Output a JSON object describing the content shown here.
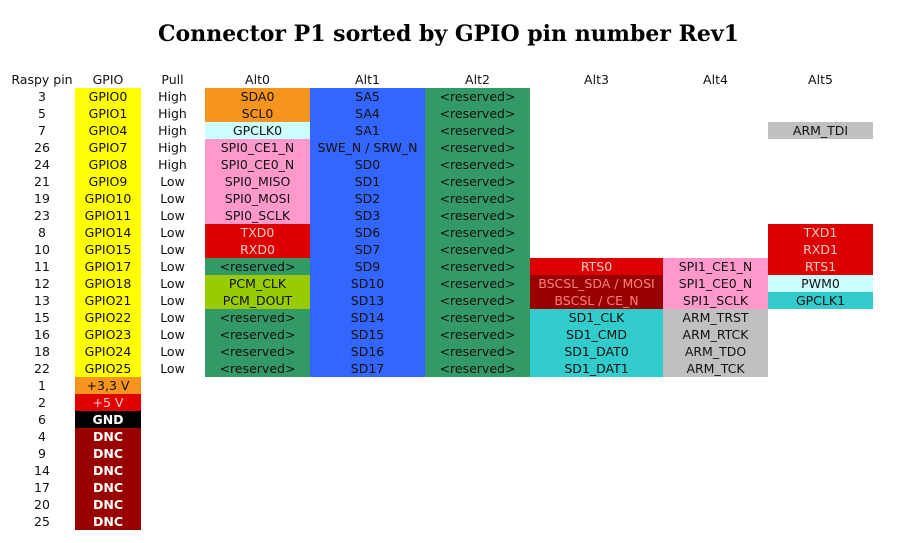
{
  "title": "Connector P1 sorted by GPIO pin number Rev1",
  "headers": [
    "Raspy pin",
    "GPIO",
    "Pull",
    "Alt0",
    "Alt1",
    "Alt2",
    "Alt3",
    "Alt4",
    "Alt5"
  ],
  "colors": {
    "gpio": "#ffff00",
    "power33": "#f7941d",
    "power5": "#e00000",
    "gnd": "#000000",
    "dnc": "#990000",
    "i2c": "#f7941d",
    "alt1": "#3366ff",
    "reserved": "#339966",
    "spi": "#ff99cc",
    "gpclk": "#ccffff",
    "pcm": "#99cc00",
    "uart": "#dd0000",
    "bscsl": "#990000",
    "sd1": "#33cccc",
    "arm": "#c0c0c0"
  },
  "rows": [
    {
      "pin": "3",
      "gpio": "GPIO0",
      "pull": "High",
      "alt0": "SDA0",
      "alt1": "SA5",
      "alt2": "<reserved>",
      "alt3": "",
      "alt4": "",
      "alt5": "",
      "k": [
        "yellow",
        "orange",
        "blue",
        "green",
        "",
        "",
        ""
      ]
    },
    {
      "pin": "5",
      "gpio": "GPIO1",
      "pull": "High",
      "alt0": "SCL0",
      "alt1": "SA4",
      "alt2": "<reserved>",
      "alt3": "",
      "alt4": "",
      "alt5": "",
      "k": [
        "yellow",
        "orange",
        "blue",
        "green",
        "",
        "",
        ""
      ]
    },
    {
      "pin": "7",
      "gpio": "GPIO4",
      "pull": "High",
      "alt0": "GPCLK0",
      "alt1": "SA1",
      "alt2": "<reserved>",
      "alt3": "",
      "alt4": "",
      "alt5": "ARM_TDI",
      "k": [
        "yellow",
        "cyan",
        "blue",
        "green",
        "",
        "",
        "grey"
      ]
    },
    {
      "pin": "26",
      "gpio": "GPIO7",
      "pull": "High",
      "alt0": "SPI0_CE1_N",
      "alt1": "SWE_N / SRW_N",
      "alt2": "<reserved>",
      "alt3": "",
      "alt4": "",
      "alt5": "",
      "k": [
        "yellow",
        "pink",
        "blue",
        "green",
        "",
        "",
        ""
      ]
    },
    {
      "pin": "24",
      "gpio": "GPIO8",
      "pull": "High",
      "alt0": "SPI0_CE0_N",
      "alt1": "SD0",
      "alt2": "<reserved>",
      "alt3": "",
      "alt4": "",
      "alt5": "",
      "k": [
        "yellow",
        "pink",
        "blue",
        "green",
        "",
        "",
        ""
      ]
    },
    {
      "pin": "21",
      "gpio": "GPIO9",
      "pull": "Low",
      "alt0": "SPI0_MISO",
      "alt1": "SD1",
      "alt2": "<reserved>",
      "alt3": "",
      "alt4": "",
      "alt5": "",
      "k": [
        "yellow",
        "pink",
        "blue",
        "green",
        "",
        "",
        ""
      ]
    },
    {
      "pin": "19",
      "gpio": "GPIO10",
      "pull": "Low",
      "alt0": "SPI0_MOSI",
      "alt1": "SD2",
      "alt2": "<reserved>",
      "alt3": "",
      "alt4": "",
      "alt5": "",
      "k": [
        "yellow",
        "pink",
        "blue",
        "green",
        "",
        "",
        ""
      ]
    },
    {
      "pin": "23",
      "gpio": "GPIO11",
      "pull": "Low",
      "alt0": "SPI0_SCLK",
      "alt1": "SD3",
      "alt2": "<reserved>",
      "alt3": "",
      "alt4": "",
      "alt5": "",
      "k": [
        "yellow",
        "pink",
        "blue",
        "green",
        "",
        "",
        ""
      ]
    },
    {
      "pin": "8",
      "gpio": "GPIO14",
      "pull": "Low",
      "alt0": "TXD0",
      "alt1": "SD6",
      "alt2": "<reserved>",
      "alt3": "",
      "alt4": "",
      "alt5": "TXD1",
      "k": [
        "yellow",
        "ltred",
        "blue",
        "green",
        "",
        "",
        "ltred"
      ]
    },
    {
      "pin": "10",
      "gpio": "GPIO15",
      "pull": "Low",
      "alt0": "RXD0",
      "alt1": "SD7",
      "alt2": "<reserved>",
      "alt3": "",
      "alt4": "",
      "alt5": "RXD1",
      "k": [
        "yellow",
        "ltred",
        "blue",
        "green",
        "",
        "",
        "ltred"
      ]
    },
    {
      "pin": "11",
      "gpio": "GPIO17",
      "pull": "Low",
      "alt0": "<reserved>",
      "alt1": "SD9",
      "alt2": "<reserved>",
      "alt3": "RTS0",
      "alt4": "SPI1_CE1_N",
      "alt5": "RTS1",
      "k": [
        "yellow",
        "green",
        "blue",
        "green",
        "ltred",
        "pink",
        "ltred"
      ]
    },
    {
      "pin": "12",
      "gpio": "GPIO18",
      "pull": "Low",
      "alt0": "PCM_CLK",
      "alt1": "SD10",
      "alt2": "<reserved>",
      "alt3": "BSCSL_SDA / MOSI",
      "alt4": "SPI1_CE0_N",
      "alt5": "PWM0",
      "k": [
        "yellow",
        "lime",
        "blue",
        "green",
        "maroon",
        "pink",
        "cyan"
      ]
    },
    {
      "pin": "13",
      "gpio": "GPIO21",
      "pull": "Low",
      "alt0": "PCM_DOUT",
      "alt1": "SD13",
      "alt2": "<reserved>",
      "alt3": "BSCSL / CE_N",
      "alt4": "SPI1_SCLK",
      "alt5": "GPCLK1",
      "k": [
        "yellow",
        "lime",
        "blue",
        "green",
        "maroon",
        "pink",
        "teal"
      ]
    },
    {
      "pin": "15",
      "gpio": "GPIO22",
      "pull": "Low",
      "alt0": "<reserved>",
      "alt1": "SD14",
      "alt2": "<reserved>",
      "alt3": "SD1_CLK",
      "alt4": "ARM_TRST",
      "alt5": "",
      "k": [
        "yellow",
        "green",
        "blue",
        "green",
        "teal",
        "grey",
        ""
      ]
    },
    {
      "pin": "16",
      "gpio": "GPIO23",
      "pull": "Low",
      "alt0": "<reserved>",
      "alt1": "SD15",
      "alt2": "<reserved>",
      "alt3": "SD1_CMD",
      "alt4": "ARM_RTCK",
      "alt5": "",
      "k": [
        "yellow",
        "green",
        "blue",
        "green",
        "teal",
        "grey",
        ""
      ]
    },
    {
      "pin": "18",
      "gpio": "GPIO24",
      "pull": "Low",
      "alt0": "<reserved>",
      "alt1": "SD16",
      "alt2": "<reserved>",
      "alt3": "SD1_DAT0",
      "alt4": "ARM_TDO",
      "alt5": "",
      "k": [
        "yellow",
        "green",
        "blue",
        "green",
        "teal",
        "grey",
        ""
      ]
    },
    {
      "pin": "22",
      "gpio": "GPIO25",
      "pull": "Low",
      "alt0": "<reserved>",
      "alt1": "SD17",
      "alt2": "<reserved>",
      "alt3": "SD1_DAT1",
      "alt4": "ARM_TCK",
      "alt5": "",
      "k": [
        "yellow",
        "green",
        "blue",
        "green",
        "teal",
        "grey",
        ""
      ]
    },
    {
      "pin": "1",
      "gpio": "+3,3 V",
      "pull": "",
      "alt0": "",
      "alt1": "",
      "alt2": "",
      "alt3": "",
      "alt4": "",
      "alt5": "",
      "k": [
        "orange",
        "",
        "",
        "",
        "",
        "",
        ""
      ]
    },
    {
      "pin": "2",
      "gpio": "+5 V",
      "pull": "",
      "alt0": "",
      "alt1": "",
      "alt2": "",
      "alt3": "",
      "alt4": "",
      "alt5": "",
      "k": [
        "red",
        "",
        "",
        "",
        "",
        "",
        ""
      ]
    },
    {
      "pin": "6",
      "gpio": "GND",
      "pull": "",
      "alt0": "",
      "alt1": "",
      "alt2": "",
      "alt3": "",
      "alt4": "",
      "alt5": "",
      "k": [
        "black",
        "",
        "",
        "",
        "",
        "",
        ""
      ]
    },
    {
      "pin": "4",
      "gpio": "DNC",
      "pull": "",
      "alt0": "",
      "alt1": "",
      "alt2": "",
      "alt3": "",
      "alt4": "",
      "alt5": "",
      "k": [
        "dkred",
        "",
        "",
        "",
        "",
        "",
        ""
      ]
    },
    {
      "pin": "9",
      "gpio": "DNC",
      "pull": "",
      "alt0": "",
      "alt1": "",
      "alt2": "",
      "alt3": "",
      "alt4": "",
      "alt5": "",
      "k": [
        "dkred",
        "",
        "",
        "",
        "",
        "",
        ""
      ]
    },
    {
      "pin": "14",
      "gpio": "DNC",
      "pull": "",
      "alt0": "",
      "alt1": "",
      "alt2": "",
      "alt3": "",
      "alt4": "",
      "alt5": "",
      "k": [
        "dkred",
        "",
        "",
        "",
        "",
        "",
        ""
      ]
    },
    {
      "pin": "17",
      "gpio": "DNC",
      "pull": "",
      "alt0": "",
      "alt1": "",
      "alt2": "",
      "alt3": "",
      "alt4": "",
      "alt5": "",
      "k": [
        "dkred",
        "",
        "",
        "",
        "",
        "",
        ""
      ]
    },
    {
      "pin": "20",
      "gpio": "DNC",
      "pull": "",
      "alt0": "",
      "alt1": "",
      "alt2": "",
      "alt3": "",
      "alt4": "",
      "alt5": "",
      "k": [
        "dkred",
        "",
        "",
        "",
        "",
        "",
        ""
      ]
    },
    {
      "pin": "25",
      "gpio": "DNC",
      "pull": "",
      "alt0": "",
      "alt1": "",
      "alt2": "",
      "alt3": "",
      "alt4": "",
      "alt5": "",
      "k": [
        "dkred",
        "",
        "",
        "",
        "",
        "",
        ""
      ]
    }
  ]
}
